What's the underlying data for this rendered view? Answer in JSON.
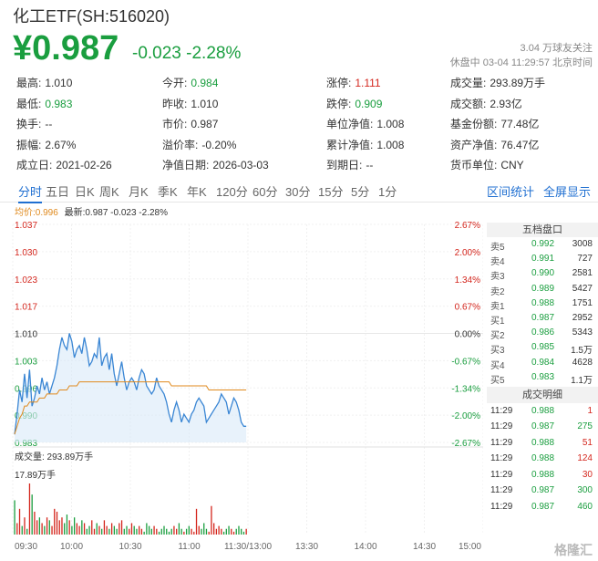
{
  "header": {
    "title": "化工ETF(SH:516020)",
    "price": "¥0.987",
    "change": "-0.023 -2.28%",
    "follow": "3.04 万球友关注",
    "status": "休盘中 03-04 11:29:57 北京时间"
  },
  "stats": [
    [
      {
        "label": "最高:",
        "value": "1.010",
        "tone": ""
      },
      {
        "label": "今开:",
        "value": "0.984",
        "tone": "down"
      },
      {
        "label": "涨停:",
        "value": "1.111",
        "tone": "up"
      },
      {
        "label": "成交量:",
        "value": "293.89万手",
        "tone": ""
      }
    ],
    [
      {
        "label": "最低:",
        "value": "0.983",
        "tone": "down"
      },
      {
        "label": "昨收:",
        "value": "1.010",
        "tone": ""
      },
      {
        "label": "跌停:",
        "value": "0.909",
        "tone": "down"
      },
      {
        "label": "成交额:",
        "value": "2.93亿",
        "tone": ""
      }
    ],
    [
      {
        "label": "换手:",
        "value": "--",
        "tone": ""
      },
      {
        "label": "市价:",
        "value": "0.987",
        "tone": ""
      },
      {
        "label": "单位净值:",
        "value": "1.008",
        "tone": ""
      },
      {
        "label": "基金份额:",
        "value": "77.48亿",
        "tone": ""
      }
    ],
    [
      {
        "label": "振幅:",
        "value": "2.67%",
        "tone": ""
      },
      {
        "label": "溢价率:",
        "value": "-0.20%",
        "tone": ""
      },
      {
        "label": "累计净值:",
        "value": "1.008",
        "tone": ""
      },
      {
        "label": "资产净值:",
        "value": "76.47亿",
        "tone": ""
      }
    ],
    [
      {
        "label": "成立日:",
        "value": "2021-02-26",
        "tone": ""
      },
      {
        "label": "净值日期:",
        "value": "2026-03-03",
        "tone": ""
      },
      {
        "label": "到期日:",
        "value": "--",
        "tone": ""
      },
      {
        "label": "货币单位:",
        "value": "CNY",
        "tone": ""
      }
    ]
  ],
  "tabs": [
    "分时",
    "五日",
    "日K",
    "周K",
    "月K",
    "季K",
    "年K",
    "120分",
    "60分",
    "30分",
    "15分",
    "5分",
    "1分"
  ],
  "active_tab": "分时",
  "tab_actions": [
    "区间统计",
    "全屏显示"
  ],
  "legend": {
    "avg": "均价:0.996",
    "latest": "最新:0.987 -0.023 -2.28%"
  },
  "volume_label": "成交量: 293.89万手",
  "volume_max_label": "17.89万手",
  "order_book": {
    "title": "五档盘口",
    "rows": [
      {
        "label": "卖5",
        "price": "0.992",
        "vol": "3008"
      },
      {
        "label": "卖4",
        "price": "0.991",
        "vol": "727"
      },
      {
        "label": "卖3",
        "price": "0.990",
        "vol": "2581"
      },
      {
        "label": "卖2",
        "price": "0.989",
        "vol": "5427"
      },
      {
        "label": "卖1",
        "price": "0.988",
        "vol": "1751"
      },
      {
        "label": "买1",
        "price": "0.987",
        "vol": "2952"
      },
      {
        "label": "买2",
        "price": "0.986",
        "vol": "5343"
      },
      {
        "label": "买3",
        "price": "0.985",
        "vol": "1.5万"
      },
      {
        "label": "买4",
        "price": "0.984",
        "vol": "4628"
      },
      {
        "label": "买5",
        "price": "0.983",
        "vol": "1.1万"
      }
    ]
  },
  "trades": {
    "title": "成交明细",
    "rows": [
      {
        "time": "11:29",
        "price": "0.988",
        "vol": "1",
        "tone": "up"
      },
      {
        "time": "11:29",
        "price": "0.987",
        "vol": "275",
        "tone": "down"
      },
      {
        "time": "11:29",
        "price": "0.988",
        "vol": "51",
        "tone": "up"
      },
      {
        "time": "11:29",
        "price": "0.988",
        "vol": "124",
        "tone": "up"
      },
      {
        "time": "11:29",
        "price": "0.988",
        "vol": "30",
        "tone": "up"
      },
      {
        "time": "11:29",
        "price": "0.987",
        "vol": "300",
        "tone": "down"
      },
      {
        "time": "11:29",
        "price": "0.987",
        "vol": "460",
        "tone": "down"
      }
    ]
  },
  "watermark": "格隆汇",
  "colors": {
    "up": "#d4261d",
    "down": "#1a9e3f",
    "avg_line": "#e08a1e",
    "price_line": "#3a86d4",
    "accent": "#1f6fd1"
  },
  "chart_data": {
    "type": "line",
    "y_left_ticks": [
      "1.037",
      "1.030",
      "1.023",
      "1.017",
      "1.010",
      "1.003",
      "0.996",
      "0.990",
      "0.983"
    ],
    "y_right_ticks": [
      "2.67%",
      "2.00%",
      "1.34%",
      "0.67%",
      "0.00%",
      "-0.67%",
      "-1.34%",
      "-2.00%",
      "-2.67%"
    ],
    "x_ticks": [
      "09:30",
      "10:00",
      "10:30",
      "11:00",
      "11:30/13:00",
      "13:30",
      "14:00",
      "14:30",
      "15:00"
    ],
    "ylim": [
      0.983,
      1.037
    ],
    "prev_close": 1.01,
    "series": [
      {
        "name": "最新",
        "values": [
          0.985,
          0.99,
          0.996,
          0.993,
          1.0,
          0.994,
          1.001,
          0.992,
          0.994,
          0.997,
          0.995,
          0.999,
          0.996,
          0.998,
          0.995,
          0.997,
          0.999,
          1.002,
          1.006,
          1.009,
          1.007,
          1.006,
          1.01,
          1.008,
          1.004,
          1.006,
          1.007,
          1.005,
          1.009,
          1.006,
          1.002,
          1.003,
          1.005,
          1.004,
          1.009,
          1.002,
          1.004,
          1.005,
          1.001,
          1.005,
          1.0,
          0.997,
          1.0,
          1.003,
          0.999,
          0.996,
          0.998,
          0.999,
          0.998,
          0.996,
          0.999,
          1.001,
          1.0,
          0.997,
          0.996,
          0.995,
          0.996,
          0.999,
          0.997,
          0.996,
          0.995,
          0.993,
          0.99,
          0.988,
          0.991,
          0.993,
          0.991,
          0.988,
          0.99,
          0.989,
          0.988,
          0.99,
          0.991,
          0.993,
          0.994,
          0.993,
          0.992,
          0.988,
          0.989,
          0.99,
          0.991,
          0.992,
          0.993,
          0.995,
          0.994,
          0.993,
          0.99,
          0.992,
          0.994,
          0.993,
          0.991,
          0.988,
          0.987,
          0.987
        ]
      },
      {
        "name": "均价",
        "values": [
          0.985,
          0.987,
          0.989,
          0.99,
          0.992,
          0.992,
          0.993,
          0.993,
          0.993,
          0.993,
          0.994,
          0.994,
          0.994,
          0.995,
          0.995,
          0.995,
          0.995,
          0.995,
          0.996,
          0.996,
          0.996,
          0.996,
          0.997,
          0.997,
          0.997,
          0.997,
          0.998,
          0.998,
          0.998,
          0.998,
          0.998,
          0.998,
          0.998,
          0.998,
          0.998,
          0.998,
          0.998,
          0.998,
          0.998,
          0.998,
          0.998,
          0.998,
          0.998,
          0.998,
          0.998,
          0.998,
          0.998,
          0.998,
          0.998,
          0.998,
          0.998,
          0.998,
          0.998,
          0.998,
          0.998,
          0.998,
          0.998,
          0.998,
          0.998,
          0.998,
          0.998,
          0.998,
          0.998,
          0.997,
          0.997,
          0.997,
          0.997,
          0.997,
          0.997,
          0.997,
          0.997,
          0.997,
          0.997,
          0.997,
          0.997,
          0.997,
          0.997,
          0.997,
          0.996,
          0.996,
          0.996,
          0.996,
          0.996,
          0.996,
          0.996,
          0.996,
          0.996,
          0.996,
          0.996,
          0.996,
          0.996,
          0.996,
          0.996,
          0.996
        ]
      }
    ],
    "volume": [
      12,
      4,
      9,
      3,
      6,
      2,
      17.89,
      14,
      8,
      5,
      6,
      4,
      3,
      6,
      5,
      3,
      9,
      8,
      5,
      6,
      4,
      7,
      5,
      3,
      6,
      4,
      3,
      5,
      4,
      2,
      3,
      5,
      2,
      4,
      3,
      2,
      5,
      3,
      2,
      4,
      3,
      2,
      4,
      5,
      2,
      3,
      2,
      4,
      3,
      2,
      3,
      2,
      1,
      4,
      3,
      2,
      3,
      2,
      1,
      2,
      3,
      2,
      1,
      2,
      3,
      2,
      4,
      2,
      1,
      2,
      3,
      2,
      1,
      9,
      3,
      2,
      4,
      2,
      1,
      10,
      4,
      2,
      3,
      2,
      1,
      2,
      3,
      2,
      1,
      2,
      3,
      2,
      1,
      2
    ]
  }
}
